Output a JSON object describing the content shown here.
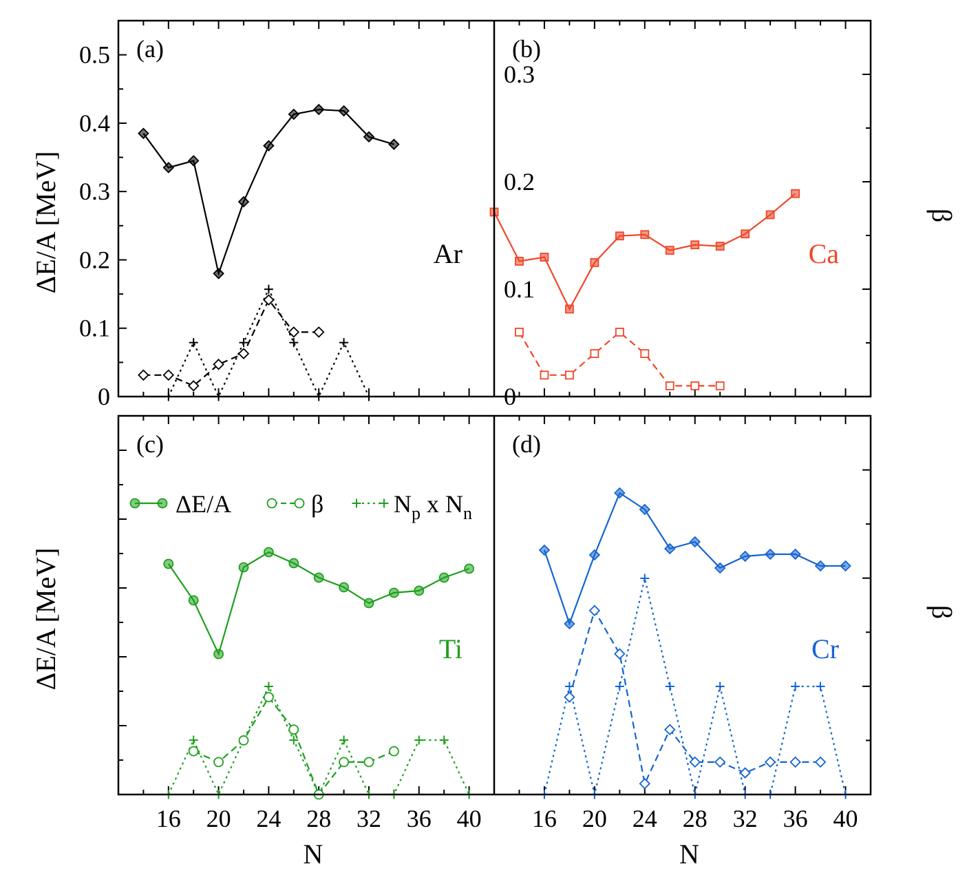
{
  "chart_data": [
    {
      "type": "line",
      "panel": "(a)",
      "element": "Ar",
      "color": "#000000",
      "marker": "diamond",
      "xlim": [
        12,
        42
      ],
      "ylim": [
        0,
        0.55
      ],
      "y2lim": [
        0,
        0.35
      ],
      "yticks": [
        0,
        0.1,
        0.2,
        0.3,
        0.4,
        0.5
      ],
      "y2ticks": [
        0,
        0.1,
        0.2,
        0.3
      ],
      "ylabel": "ΔE/A [MeV]",
      "series": [
        {
          "key": "dE",
          "axis": "left",
          "style": "solid",
          "filled": true,
          "x": [
            14,
            16,
            18,
            20,
            22,
            24,
            26,
            28,
            30,
            32,
            34
          ],
          "values": [
            0.385,
            0.335,
            0.345,
            0.18,
            0.285,
            0.367,
            0.413,
            0.42,
            0.418,
            0.38,
            0.369
          ]
        },
        {
          "key": "beta",
          "axis": "right",
          "style": "dashed",
          "filled": false,
          "x": [
            14,
            16,
            18,
            20,
            22,
            24,
            26,
            28
          ],
          "values": [
            0.02,
            0.02,
            0.01,
            0.03,
            0.04,
            0.09,
            0.06,
            0.06
          ]
        },
        {
          "key": "NpNn",
          "axis": "left",
          "style": "dotted",
          "marker": "plus",
          "x": [
            16,
            18,
            20,
            22,
            24,
            26,
            28,
            30,
            32
          ],
          "values": [
            0,
            0.079,
            0,
            0.079,
            0.157,
            0.079,
            0,
            0.079,
            0
          ]
        }
      ]
    },
    {
      "type": "line",
      "panel": "(b)",
      "element": "Ca",
      "color": "#f04628",
      "marker": "square",
      "xlim": [
        12,
        42
      ],
      "ylim": [
        0,
        0.55
      ],
      "y2lim": [
        0,
        0.35
      ],
      "y2label": "β",
      "series": [
        {
          "key": "dE",
          "axis": "left",
          "style": "solid",
          "filled": true,
          "x": [
            12,
            14,
            16,
            18,
            20,
            22,
            24,
            26,
            28,
            30,
            32,
            34,
            36
          ],
          "values": [
            0.27,
            0.198,
            0.204,
            0.128,
            0.196,
            0.235,
            0.237,
            0.214,
            0.222,
            0.22,
            0.238,
            0.266,
            0.297
          ]
        },
        {
          "key": "beta",
          "axis": "right",
          "style": "dashed",
          "filled": false,
          "x": [
            14,
            16,
            18,
            20,
            22,
            24,
            26,
            28,
            30
          ],
          "values": [
            0.06,
            0.02,
            0.02,
            0.04,
            0.06,
            0.04,
            0.01,
            0.01,
            0.01
          ]
        }
      ]
    },
    {
      "type": "line",
      "panel": "(c)",
      "element": "Ti",
      "color": "#1da01d",
      "marker": "circle",
      "xlim": [
        12,
        42
      ],
      "ylim": [
        0,
        0.55
      ],
      "y2lim": [
        0,
        0.35
      ],
      "xticks": [
        16,
        20,
        24,
        28,
        32,
        36,
        40
      ],
      "xlabel": "N",
      "ylabel": "ΔE/A [MeV]",
      "legend": {
        "dE": "ΔE/A",
        "beta": "β",
        "np_main": "N",
        "np_sub": "p",
        "np_mid": " x N",
        "np_sub2": "n"
      },
      "series": [
        {
          "key": "dE",
          "axis": "left",
          "style": "solid",
          "filled": true,
          "x": [
            16,
            18,
            20,
            22,
            24,
            26,
            28,
            30,
            32,
            34,
            36,
            38,
            40
          ],
          "values": [
            0.335,
            0.282,
            0.204,
            0.33,
            0.352,
            0.336,
            0.315,
            0.301,
            0.278,
            0.293,
            0.296,
            0.315,
            0.328
          ]
        },
        {
          "key": "beta",
          "axis": "right",
          "style": "dashed",
          "filled": false,
          "x": [
            18,
            20,
            22,
            24,
            26,
            28,
            30,
            32,
            34
          ],
          "values": [
            0.04,
            0.03,
            0.05,
            0.09,
            0.06,
            0.0,
            0.03,
            0.03,
            0.04
          ]
        },
        {
          "key": "NpNn",
          "axis": "left",
          "style": "dotted",
          "marker": "plus",
          "x": [
            16,
            18,
            20,
            22,
            24,
            26,
            28,
            30,
            32,
            34,
            36,
            38,
            40
          ],
          "values": [
            0,
            0.079,
            0,
            0.079,
            0.157,
            0.079,
            0,
            0.079,
            0,
            0,
            0.079,
            0.079,
            0
          ]
        }
      ]
    },
    {
      "type": "line",
      "panel": "(d)",
      "element": "Cr",
      "color": "#1464d2",
      "marker": "diamond",
      "xlim": [
        12,
        42
      ],
      "ylim": [
        0,
        0.55
      ],
      "y2lim": [
        0,
        0.35
      ],
      "xticks": [
        16,
        20,
        24,
        28,
        32,
        36,
        40
      ],
      "xlabel": "N",
      "y2label": "β",
      "series": [
        {
          "key": "dE",
          "axis": "left",
          "style": "solid",
          "filled": true,
          "x": [
            16,
            18,
            20,
            22,
            24,
            26,
            28,
            30,
            32,
            34,
            36,
            38,
            40
          ],
          "values": [
            0.355,
            0.248,
            0.348,
            0.438,
            0.414,
            0.357,
            0.367,
            0.329,
            0.346,
            0.349,
            0.349,
            0.332,
            0.332
          ]
        },
        {
          "key": "beta",
          "axis": "right",
          "style": "dashed",
          "filled": false,
          "x": [
            18,
            20,
            22,
            24,
            26,
            28,
            30,
            32,
            34,
            36,
            38
          ],
          "values": [
            0.09,
            0.17,
            0.13,
            0.01,
            0.06,
            0.03,
            0.03,
            0.02,
            0.03,
            0.03,
            0.03
          ]
        },
        {
          "key": "NpNn",
          "axis": "left",
          "style": "dotted",
          "marker": "plus",
          "x": [
            16,
            18,
            20,
            22,
            24,
            26,
            28,
            30,
            32,
            34,
            36,
            38,
            40
          ],
          "values": [
            0,
            0.157,
            0,
            0.157,
            0.314,
            0.157,
            0,
            0.157,
            0,
            0,
            0.157,
            0.157,
            0
          ]
        }
      ]
    }
  ]
}
